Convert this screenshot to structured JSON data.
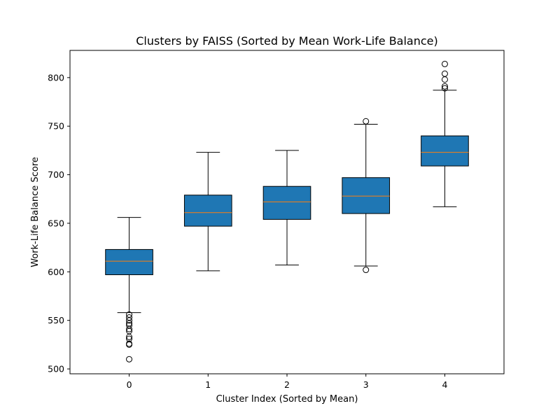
{
  "chart_data": {
    "type": "boxplot",
    "title": "Clusters by FAISS (Sorted by Mean Work-Life Balance)",
    "xlabel": "Cluster Index (Sorted by Mean)",
    "ylabel": "Work-Life Balance Score",
    "ylim": [
      495,
      828
    ],
    "yticks": [
      500,
      550,
      600,
      650,
      700,
      750,
      800
    ],
    "categories": [
      "0",
      "1",
      "2",
      "3",
      "4"
    ],
    "colors": {
      "box_fill": "#1f77b4",
      "median": "#ff7f0e",
      "whisker": "#000000",
      "frame": "#000000"
    },
    "grid": false,
    "boxes": [
      {
        "category": "0",
        "whisker_low": 558,
        "q1": 597,
        "median": 611,
        "q3": 623,
        "whisker_high": 656,
        "outliers": [
          556,
          553,
          550,
          547,
          545,
          541,
          539,
          533,
          531,
          526,
          525,
          510
        ]
      },
      {
        "category": "1",
        "whisker_low": 601,
        "q1": 647,
        "median": 661,
        "q3": 679,
        "whisker_high": 723,
        "outliers": []
      },
      {
        "category": "2",
        "whisker_low": 607,
        "q1": 654,
        "median": 672,
        "q3": 688,
        "whisker_high": 725,
        "outliers": []
      },
      {
        "category": "3",
        "whisker_low": 606,
        "q1": 660,
        "median": 678,
        "q3": 697,
        "whisker_high": 752,
        "outliers": [
          602,
          755
        ]
      },
      {
        "category": "4",
        "whisker_low": 667,
        "q1": 709,
        "median": 723,
        "q3": 740,
        "whisker_high": 787,
        "outliers": [
          789,
          791,
          798,
          804,
          814
        ]
      }
    ]
  }
}
